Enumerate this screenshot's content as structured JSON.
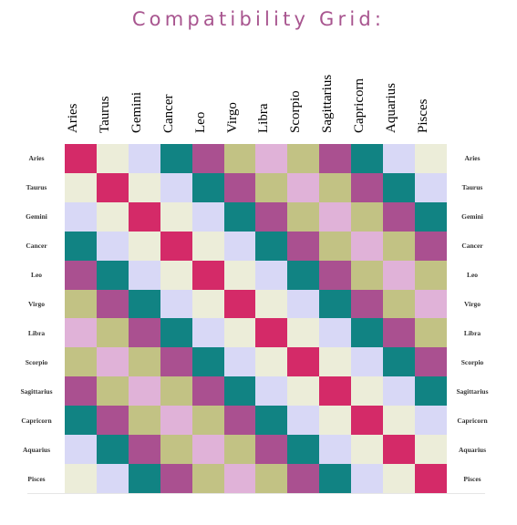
{
  "title": "Compatibility Grid:",
  "signs": [
    "Aries",
    "Taurus",
    "Gemini",
    "Cancer",
    "Leo",
    "Virgo",
    "Libra",
    "Scorpio",
    "Sagittarius",
    "Capricorn",
    "Aquarius",
    "Pisces"
  ],
  "colors": {
    "c0": "#d42a68",
    "c1": "#ecedd9",
    "c2": "#d8d8f6",
    "c3": "#118383",
    "c4": "#aa5090",
    "c5": "#c2c284",
    "c6": "#e0b2d8"
  },
  "matrix": [
    [
      0,
      1,
      2,
      3,
      4,
      5,
      6,
      5,
      4,
      3,
      2,
      1
    ],
    [
      1,
      0,
      1,
      2,
      3,
      4,
      5,
      6,
      5,
      4,
      3,
      2
    ],
    [
      2,
      1,
      0,
      1,
      2,
      3,
      4,
      5,
      6,
      5,
      4,
      3
    ],
    [
      3,
      2,
      1,
      0,
      1,
      2,
      3,
      4,
      5,
      6,
      5,
      4
    ],
    [
      4,
      3,
      2,
      1,
      0,
      1,
      2,
      3,
      4,
      5,
      6,
      5
    ],
    [
      5,
      4,
      3,
      2,
      1,
      0,
      1,
      2,
      3,
      4,
      5,
      6
    ],
    [
      6,
      5,
      4,
      3,
      2,
      1,
      0,
      1,
      2,
      3,
      4,
      5
    ],
    [
      5,
      6,
      5,
      4,
      3,
      2,
      1,
      0,
      1,
      2,
      3,
      4
    ],
    [
      4,
      5,
      6,
      5,
      4,
      3,
      2,
      1,
      0,
      1,
      2,
      3
    ],
    [
      3,
      4,
      5,
      6,
      5,
      4,
      3,
      2,
      1,
      0,
      1,
      2
    ],
    [
      2,
      3,
      4,
      5,
      6,
      5,
      4,
      3,
      2,
      1,
      0,
      1
    ],
    [
      1,
      2,
      3,
      4,
      5,
      6,
      5,
      4,
      3,
      2,
      1,
      0
    ]
  ]
}
